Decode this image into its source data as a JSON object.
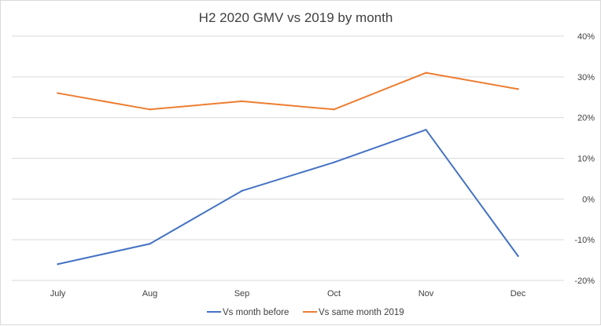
{
  "chart_data": {
    "type": "line",
    "title": "H2 2020 GMV vs 2019 by month",
    "categories": [
      "July",
      "Aug",
      "Sep",
      "Oct",
      "Nov",
      "Dec"
    ],
    "y_ticks": [
      "40%",
      "30%",
      "20%",
      "10%",
      "0%",
      "-10%",
      "-20%"
    ],
    "ylim": [
      -20,
      40
    ],
    "y_axis_side": "right",
    "grid": true,
    "legend": "bottom",
    "series": [
      {
        "name": "Vs month before",
        "color": "#4472c4",
        "values": [
          -16,
          -11,
          2,
          9,
          17,
          -14
        ]
      },
      {
        "name": "Vs same month 2019",
        "color": "#ed7d31",
        "values": [
          26,
          22,
          24,
          22,
          31,
          27
        ]
      }
    ]
  }
}
